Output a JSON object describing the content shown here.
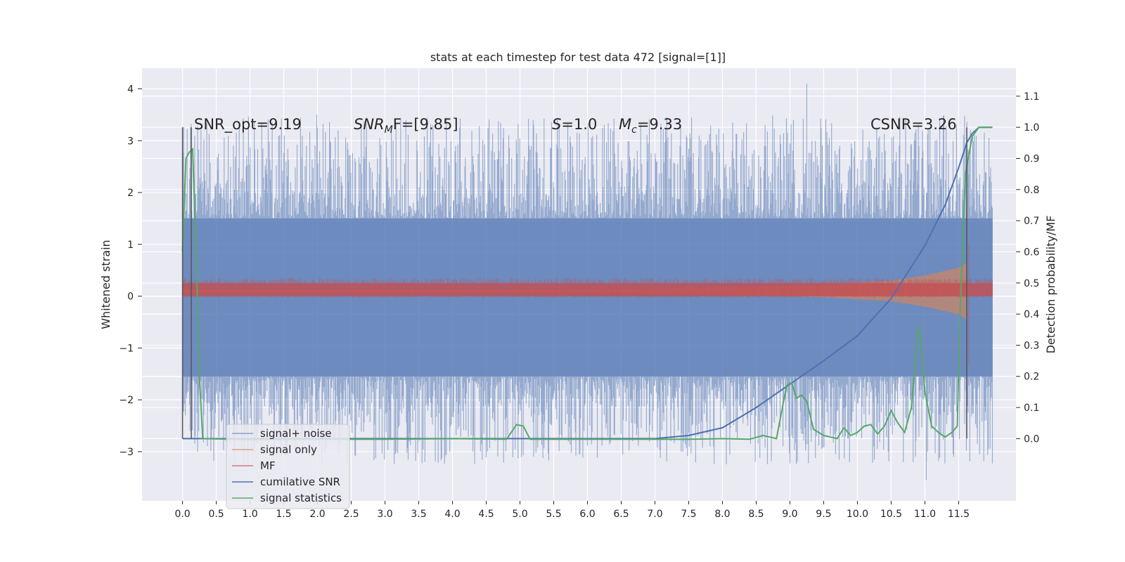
{
  "chart_data": {
    "type": "line",
    "title": "stats at each timestep for test data 472 [signal=[1]]",
    "ylabel": "Whitened strain",
    "y2label": "Detection probability/MF",
    "xlim": [
      -0.6,
      12.35
    ],
    "ylim": [
      -3.95,
      4.4
    ],
    "y2lim": [
      -0.2,
      1.19
    ],
    "xticks": [
      "0.0",
      "0.5",
      "1.0",
      "1.5",
      "2.0",
      "2.5",
      "3.0",
      "3.5",
      "4.0",
      "4.5",
      "5.0",
      "5.5",
      "6.0",
      "6.5",
      "7.0",
      "7.5",
      "8.0",
      "8.5",
      "9.0",
      "9.5",
      "10.0",
      "10.5",
      "11.0",
      "11.5"
    ],
    "yticks": [
      "4",
      "3",
      "2",
      "1",
      "0",
      "−1",
      "−2",
      "−3"
    ],
    "y2ticks": [
      "1.1",
      "1.0",
      "0.9",
      "0.8",
      "0.7",
      "0.6",
      "0.5",
      "0.4",
      "0.3",
      "0.2",
      "0.1",
      "0.0"
    ],
    "grid": true,
    "background": "#eaeaf2",
    "colors": {
      "signal_noise": "#4c72b0",
      "signal_only": "#dd8452",
      "mf": "#c44e52",
      "cumulative_snr": "#4c72b0",
      "signal_statistics": "#55a868",
      "vlines": "#555555"
    },
    "annotations": {
      "snr_opt": "SNR_opt=9.19",
      "snr_mf_main": "SNR",
      "snr_mf_sub": "M",
      "snr_mf_rest": "F=[9.85]",
      "s_main": "S",
      "s_rest": "=1.0",
      "mc_main": "M",
      "mc_sub": "c",
      "mc_rest": "=9.33",
      "csnr": "CSNR=3.26"
    },
    "vlines_x": [
      0.0,
      0.13,
      11.62
    ],
    "vline_y2_range": [
      0.0,
      1.0
    ],
    "series": [
      {
        "name": "signal+ noise",
        "axis": "left",
        "style": "noise-band",
        "x_range": [
          0.0,
          12.0
        ],
        "band_dense": [
          -1.55,
          1.5
        ],
        "spike_max": [
          3.65,
          4.1
        ],
        "spike_min": [
          -3.55,
          -3.4
        ]
      },
      {
        "name": "signal only",
        "axis": "left",
        "style": "chirp",
        "x": [
          0.0,
          5.0,
          7.5,
          8.5,
          9.5,
          10.5,
          11.0,
          11.5,
          11.62
        ],
        "amplitude": [
          0.03,
          0.03,
          0.05,
          0.08,
          0.12,
          0.2,
          0.3,
          0.45,
          0.55
        ]
      },
      {
        "name": "MF",
        "axis": "left",
        "style": "band",
        "x_range": [
          0.0,
          12.0
        ],
        "band": [
          0.0,
          0.25
        ],
        "peak": {
          "x": 11.65,
          "y": [
            -1.3,
            1.0
          ]
        }
      },
      {
        "name": "cumilative SNR",
        "axis": "right",
        "x": [
          0.0,
          7.0,
          7.5,
          8.0,
          8.5,
          9.0,
          9.5,
          10.0,
          10.5,
          11.0,
          11.3,
          11.5,
          11.62,
          11.7,
          11.8,
          12.0
        ],
        "y": [
          0.0,
          0.0,
          0.01,
          0.035,
          0.1,
          0.175,
          0.25,
          0.33,
          0.45,
          0.62,
          0.75,
          0.87,
          0.95,
          0.98,
          1.0,
          1.0
        ]
      },
      {
        "name": "signal statistics",
        "axis": "right",
        "x": [
          0.0,
          0.05,
          0.1,
          0.15,
          0.2,
          0.25,
          0.3,
          1.0,
          2.0,
          3.0,
          4.0,
          4.8,
          4.95,
          5.05,
          5.15,
          6.0,
          7.0,
          7.5,
          8.0,
          8.4,
          8.6,
          8.8,
          8.95,
          9.02,
          9.1,
          9.17,
          9.25,
          9.35,
          9.5,
          9.7,
          9.8,
          9.9,
          10.0,
          10.1,
          10.2,
          10.3,
          10.4,
          10.5,
          10.6,
          10.7,
          10.8,
          10.9,
          10.95,
          11.0,
          11.1,
          11.2,
          11.3,
          11.4,
          11.48,
          11.52,
          11.6,
          11.7,
          11.8,
          11.9,
          12.0
        ],
        "y": [
          0.6,
          0.9,
          0.92,
          0.93,
          0.6,
          0.2,
          0.0,
          -0.003,
          -0.002,
          -0.002,
          0.0,
          -0.002,
          0.045,
          0.04,
          -0.002,
          -0.002,
          -0.002,
          -0.002,
          0.0,
          -0.002,
          0.01,
          0.0,
          0.17,
          0.18,
          0.13,
          0.14,
          0.12,
          0.03,
          0.01,
          0.0,
          0.035,
          0.01,
          0.02,
          0.04,
          0.045,
          0.015,
          0.04,
          0.09,
          0.05,
          0.02,
          0.1,
          0.36,
          0.3,
          0.15,
          0.04,
          0.02,
          0.005,
          0.02,
          0.04,
          0.4,
          0.85,
          0.97,
          1.0,
          1.0,
          1.0
        ]
      }
    ],
    "legend": {
      "placement": "lower-left",
      "entries": [
        "signal+ noise",
        "signal only",
        "MF",
        "cumilative SNR",
        "signal statistics"
      ]
    }
  }
}
